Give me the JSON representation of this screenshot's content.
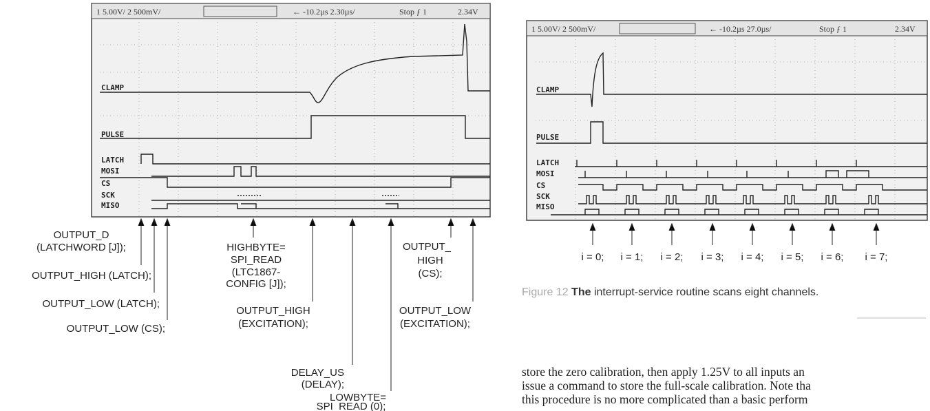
{
  "left_scope": {
    "header": [
      "1 5.00V/  2 500mV/",
      "← -10.2µs  2.30µs/",
      "Stop  ƒ 1",
      "2.34V"
    ],
    "channels": [
      "CLAMP",
      "PULSE",
      "LATCH",
      "MOSI",
      "CS",
      "SCK",
      "MISO"
    ],
    "annotations": [
      {
        "lines": [
          "OUTPUT_D",
          "(LATCHWORD [J]);"
        ]
      },
      {
        "lines": [
          "OUTPUT_HIGH (LATCH);"
        ]
      },
      {
        "lines": [
          "OUTPUT_LOW (LATCH);"
        ]
      },
      {
        "lines": [
          "OUTPUT_LOW (CS);"
        ]
      },
      {
        "lines": [
          "HIGHBYTE=",
          "SPI_READ",
          "(LTC1867-",
          "CONFIG [J]);"
        ]
      },
      {
        "lines": [
          "OUTPUT_HIGH",
          "(EXCITATION);"
        ]
      },
      {
        "lines": [
          "DELAY_US",
          "(DELAY);"
        ]
      },
      {
        "lines": [
          "LOWBYTE=",
          "SPI_READ (0);"
        ]
      },
      {
        "lines": [
          "OUTPUT_",
          "HIGH",
          "(CS);"
        ]
      },
      {
        "lines": [
          "OUTPUT_LOW",
          "(EXCITATION);"
        ]
      }
    ]
  },
  "right_scope": {
    "header": [
      "1 5.00V/  2 500mV/",
      "← -10.2µs  27.0µs/",
      "Stop  ƒ 1",
      "2.34V"
    ],
    "channels": [
      "CLAMP",
      "PULSE",
      "LATCH",
      "MOSI",
      "CS",
      "SCK",
      "MISO"
    ],
    "loop_labels": [
      "i = 0;",
      "i = 1;",
      "i = 2;",
      "i = 3;",
      "i = 4;",
      "i = 5;",
      "i = 6;",
      "i = 7;"
    ]
  },
  "caption": {
    "label": "Figure 12",
    "lead": "The",
    "text": "interrupt-service routine scans eight channels."
  },
  "body": [
    "store the zero calibration, then apply 1.25V to all inputs an",
    "issue a command to store the full-scale calibration. Note tha",
    "this procedure is no more complicated than a basic perform"
  ]
}
